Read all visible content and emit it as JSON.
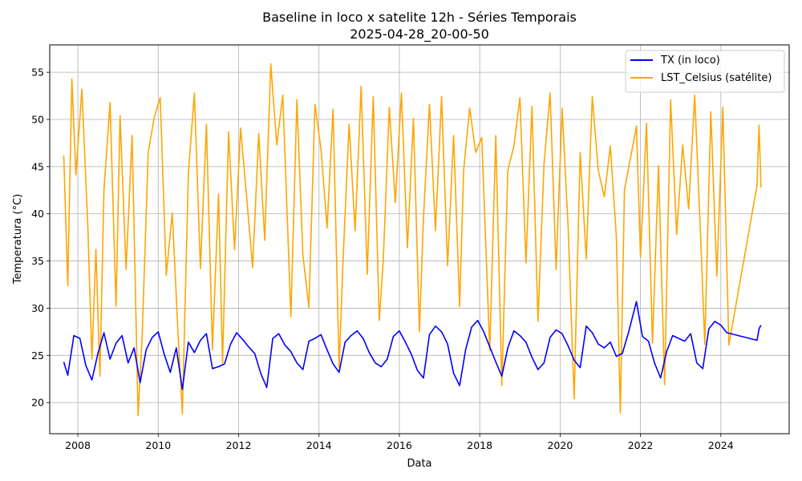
{
  "chart_data": {
    "type": "line",
    "title": "Baseline in loco x satelite 12h - Séries Temporais",
    "subtitle": "2025-04-28_20-00-50",
    "xlabel": "Data",
    "ylabel": "Temperatura (°C)",
    "xlim": [
      2007.3,
      2025.7
    ],
    "ylim": [
      16.7,
      57.9
    ],
    "x_ticks": [
      2008,
      2010,
      2012,
      2014,
      2016,
      2018,
      2020,
      2022,
      2024
    ],
    "x_tick_labels": [
      "2008",
      "2010",
      "2012",
      "2014",
      "2016",
      "2018",
      "2020",
      "2022",
      "2024"
    ],
    "y_ticks": [
      20,
      25,
      30,
      35,
      40,
      45,
      50,
      55
    ],
    "y_tick_labels": [
      "20",
      "25",
      "30",
      "35",
      "40",
      "45",
      "50",
      "55"
    ],
    "grid": true,
    "legend_position": "top-right",
    "series": [
      {
        "name": "TX (in loco)",
        "color": "#0000ff",
        "x": [
          2007.65,
          2007.75,
          2007.9,
          2008.05,
          2008.2,
          2008.35,
          2008.5,
          2008.65,
          2008.8,
          2008.95,
          2009.1,
          2009.25,
          2009.4,
          2009.55,
          2009.7,
          2009.85,
          2010.0,
          2010.15,
          2010.3,
          2010.45,
          2010.6,
          2010.75,
          2010.9,
          2011.05,
          2011.2,
          2011.35,
          2011.5,
          2011.65,
          2011.8,
          2011.95,
          2012.1,
          2012.25,
          2012.4,
          2012.55,
          2012.7,
          2012.85,
          2013.0,
          2013.15,
          2013.3,
          2013.45,
          2013.6,
          2013.75,
          2013.9,
          2014.05,
          2014.2,
          2014.35,
          2014.5,
          2014.65,
          2014.8,
          2014.95,
          2015.1,
          2015.25,
          2015.4,
          2015.55,
          2015.7,
          2015.85,
          2016.0,
          2016.15,
          2016.3,
          2016.45,
          2016.6,
          2016.75,
          2016.9,
          2017.05,
          2017.2,
          2017.35,
          2017.5,
          2017.65,
          2017.8,
          2017.95,
          2018.1,
          2018.4,
          2018.55,
          2018.7,
          2018.85,
          2019.0,
          2019.15,
          2019.3,
          2019.45,
          2019.6,
          2019.75,
          2019.9,
          2020.05,
          2020.2,
          2020.35,
          2020.5,
          2020.65,
          2020.8,
          2020.95,
          2021.1,
          2021.25,
          2021.4,
          2021.55,
          2021.7,
          2021.9,
          2022.05,
          2022.2,
          2022.35,
          2022.5,
          2022.65,
          2022.8,
          2022.95,
          2023.1,
          2023.25,
          2023.4,
          2023.55,
          2023.7,
          2023.85,
          2024.0,
          2024.15,
          2024.9,
          2024.95,
          2025.0
        ],
        "y": [
          24.3,
          22.9,
          27.1,
          26.8,
          23.9,
          22.4,
          25.2,
          27.4,
          24.6,
          26.3,
          27.1,
          24.2,
          25.8,
          22.1,
          25.6,
          26.9,
          27.5,
          25.1,
          23.2,
          25.8,
          21.4,
          26.4,
          25.3,
          26.6,
          27.3,
          23.6,
          23.8,
          24.1,
          26.2,
          27.4,
          26.7,
          25.9,
          25.2,
          23.1,
          21.6,
          26.8,
          27.3,
          26.1,
          25.4,
          24.2,
          23.5,
          26.5,
          26.8,
          27.2,
          25.6,
          24.1,
          23.2,
          26.4,
          27.1,
          27.6,
          26.8,
          25.3,
          24.2,
          23.8,
          24.6,
          27.0,
          27.6,
          26.4,
          25.1,
          23.4,
          22.6,
          27.2,
          28.1,
          27.5,
          26.2,
          23.1,
          21.8,
          25.6,
          28.0,
          28.7,
          27.5,
          24.3,
          22.8,
          25.8,
          27.6,
          27.1,
          26.4,
          24.8,
          23.5,
          24.2,
          26.9,
          27.7,
          27.3,
          26.0,
          24.5,
          23.7,
          28.1,
          27.4,
          26.2,
          25.8,
          26.4,
          24.9,
          25.2,
          27.4,
          30.7,
          27.0,
          26.5,
          24.2,
          22.6,
          25.4,
          27.1,
          26.8,
          26.5,
          27.3,
          24.2,
          23.6,
          27.8,
          28.6,
          28.2,
          27.4,
          26.6,
          27.8,
          28.2
        ]
      },
      {
        "name": "LST_Celsius (satélite)",
        "color": "#ffa500",
        "x": [
          2007.65,
          2007.75,
          2007.85,
          2007.95,
          2008.1,
          2008.25,
          2008.35,
          2008.45,
          2008.55,
          2008.65,
          2008.8,
          2008.95,
          2009.05,
          2009.2,
          2009.35,
          2009.5,
          2009.6,
          2009.75,
          2009.9,
          2010.05,
          2010.2,
          2010.35,
          2010.5,
          2010.6,
          2010.75,
          2010.9,
          2011.05,
          2011.2,
          2011.35,
          2011.5,
          2011.6,
          2011.75,
          2011.9,
          2012.05,
          2012.2,
          2012.35,
          2012.5,
          2012.65,
          2012.8,
          2012.95,
          2013.1,
          2013.3,
          2013.45,
          2013.6,
          2013.75,
          2013.9,
          2014.05,
          2014.2,
          2014.35,
          2014.5,
          2014.6,
          2014.75,
          2014.9,
          2015.05,
          2015.2,
          2015.35,
          2015.5,
          2015.6,
          2015.75,
          2015.9,
          2016.05,
          2016.2,
          2016.35,
          2016.5,
          2016.6,
          2016.75,
          2016.9,
          2017.05,
          2017.2,
          2017.35,
          2017.5,
          2017.6,
          2017.75,
          2017.9,
          2018.05,
          2018.25,
          2018.4,
          2018.55,
          2018.7,
          2018.85,
          2019.0,
          2019.15,
          2019.3,
          2019.45,
          2019.6,
          2019.75,
          2019.9,
          2020.05,
          2020.2,
          2020.35,
          2020.5,
          2020.65,
          2020.8,
          2020.95,
          2021.1,
          2021.25,
          2021.4,
          2021.5,
          2021.6,
          2021.9,
          2022.0,
          2022.15,
          2022.3,
          2022.45,
          2022.6,
          2022.75,
          2022.9,
          2023.05,
          2023.2,
          2023.35,
          2023.5,
          2023.6,
          2023.75,
          2023.9,
          2024.05,
          2024.2,
          2024.9,
          2024.95,
          2025.0
        ],
        "y": [
          46.2,
          32.4,
          54.3,
          44.1,
          53.2,
          38.5,
          24.6,
          36.2,
          22.8,
          42.5,
          51.8,
          30.2,
          50.4,
          34.1,
          48.3,
          18.6,
          26.9,
          46.5,
          50.2,
          52.3,
          33.5,
          40.1,
          26.8,
          18.8,
          44.3,
          52.8,
          34.2,
          49.5,
          25.6,
          42.1,
          24.2,
          48.7,
          36.2,
          49.1,
          41.8,
          34.3,
          48.5,
          37.2,
          55.9,
          47.3,
          52.6,
          29.1,
          52.1,
          35.6,
          30.1,
          51.6,
          46.9,
          38.5,
          51.1,
          23.7,
          35.2,
          49.5,
          38.2,
          53.5,
          33.6,
          52.4,
          28.7,
          35.1,
          51.3,
          41.2,
          52.8,
          36.4,
          50.1,
          27.5,
          39.6,
          51.6,
          38.2,
          52.4,
          34.5,
          48.3,
          30.2,
          44.6,
          51.2,
          46.5,
          48.1,
          25.5,
          48.3,
          21.8,
          44.6,
          47.2,
          52.3,
          34.8,
          51.4,
          28.6,
          45.2,
          52.8,
          34.1,
          51.2,
          38.6,
          20.4,
          46.5,
          35.2,
          52.4,
          44.6,
          41.8,
          47.2,
          37.6,
          18.9,
          42.5,
          49.3,
          35.4,
          49.6,
          26.3,
          45.1,
          21.9,
          52.1,
          37.8,
          47.3,
          40.5,
          52.6,
          37.1,
          26.2,
          50.8,
          33.4,
          51.3,
          26.1,
          43.0,
          49.4,
          42.8
        ]
      }
    ]
  }
}
